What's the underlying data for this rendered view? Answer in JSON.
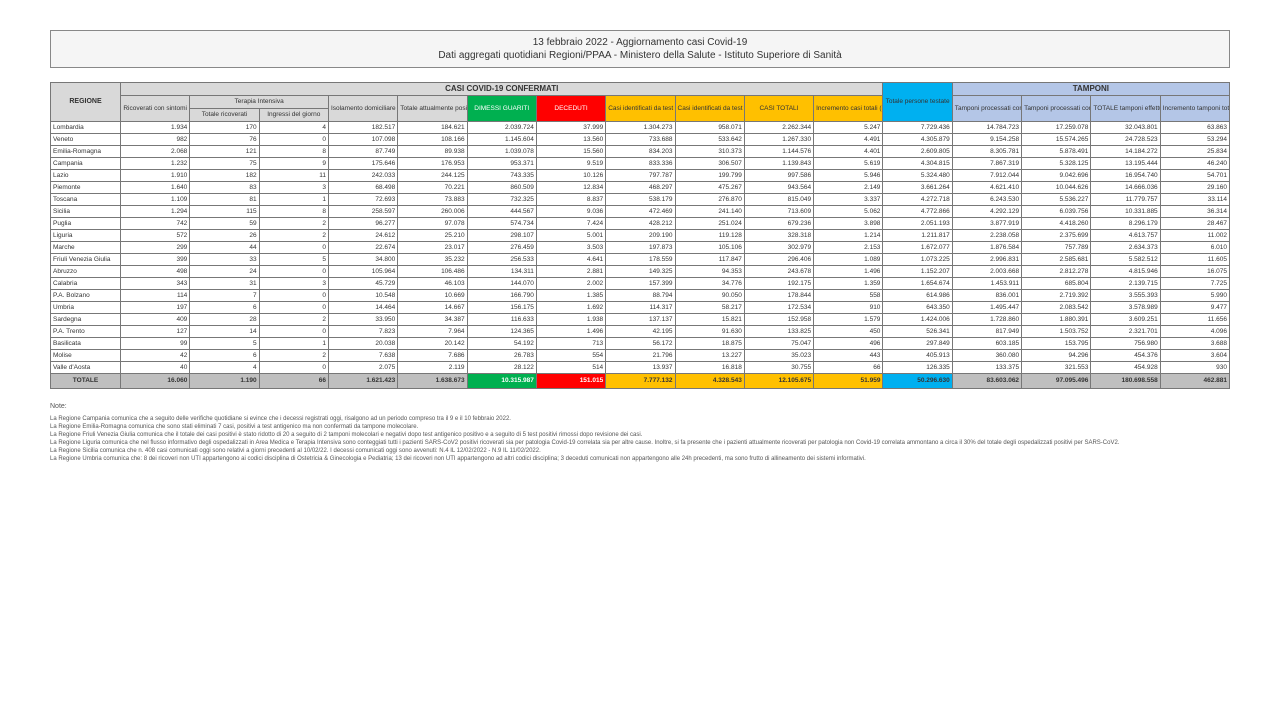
{
  "header": {
    "line1": "13 febbraio 2022 - Aggiornamento casi Covid-19",
    "line2": "Dati aggregati quotidiani Regioni/PPAA - Ministero della Salute - Istituto Superiore di Sanità"
  },
  "columns": {
    "regione": "REGIONE",
    "group_casi": "CASI COVID-19 CONFERMATI",
    "group_tamponi": "TAMPONI",
    "ricoverati": "Ricoverati con sintomi",
    "terapia_intensiva": "Terapia Intensiva",
    "ti_totale": "Totale ricoverati",
    "ti_ingressi": "Ingressi del giorno",
    "isolamento": "Isolamento domiciliare",
    "tot_positivi": "Totale attualmente positivi",
    "dimessi": "DIMESSI GUARITI",
    "deceduti": "DECEDUTI",
    "casi_mol": "Casi identificati da test molecolare",
    "casi_ag": "Casi identificati da test antigenico rapido",
    "casi_totali": "CASI TOTALI",
    "incr_casi": "Incremento casi totali (rispetto al giorno precedente)",
    "persone_test": "Totale persone testate",
    "tamp_mol": "Tamponi processati con test molecolare",
    "tamp_ag": "Tamponi processati con test antigenico rapido",
    "tamp_tot": "TOTALE tamponi effettuati",
    "incr_tamp": "Incremento tamponi totali (rispetto al giorno precedente)"
  },
  "rows": [
    {
      "r": "Lombardia",
      "v": [
        "1.934",
        "170",
        "4",
        "182.517",
        "184.621",
        "2.039.724",
        "37.999",
        "1.304.273",
        "958.071",
        "2.262.344",
        "5.247",
        "7.729.436",
        "14.784.723",
        "17.259.078",
        "32.043.801",
        "63.863"
      ]
    },
    {
      "r": "Veneto",
      "v": [
        "982",
        "76",
        "0",
        "107.098",
        "108.166",
        "1.145.604",
        "13.560",
        "733.688",
        "533.642",
        "1.267.330",
        "4.491",
        "4.305.879",
        "9.154.258",
        "15.574.265",
        "24.728.523",
        "53.294"
      ]
    },
    {
      "r": "Emilia-Romagna",
      "v": [
        "2.068",
        "121",
        "8",
        "87.749",
        "89.938",
        "1.039.078",
        "15.560",
        "834.203",
        "310.373",
        "1.144.576",
        "4.401",
        "2.609.805",
        "8.305.781",
        "5.878.491",
        "14.184.272",
        "25.834"
      ]
    },
    {
      "r": "Campania",
      "v": [
        "1.232",
        "75",
        "9",
        "175.646",
        "176.953",
        "953.371",
        "9.519",
        "833.336",
        "306.507",
        "1.139.843",
        "5.619",
        "4.304.815",
        "7.867.319",
        "5.328.125",
        "13.195.444",
        "46.240"
      ]
    },
    {
      "r": "Lazio",
      "v": [
        "1.910",
        "182",
        "11",
        "242.033",
        "244.125",
        "743.335",
        "10.126",
        "797.787",
        "199.799",
        "997.586",
        "5.946",
        "5.324.480",
        "7.912.044",
        "9.042.696",
        "16.954.740",
        "54.701"
      ]
    },
    {
      "r": "Piemonte",
      "v": [
        "1.640",
        "83",
        "3",
        "68.498",
        "70.221",
        "860.509",
        "12.834",
        "468.297",
        "475.267",
        "943.564",
        "2.149",
        "3.661.264",
        "4.621.410",
        "10.044.626",
        "14.666.036",
        "29.160"
      ]
    },
    {
      "r": "Toscana",
      "v": [
        "1.109",
        "81",
        "1",
        "72.693",
        "73.883",
        "732.325",
        "8.837",
        "538.179",
        "276.870",
        "815.049",
        "3.337",
        "4.272.718",
        "6.243.530",
        "5.536.227",
        "11.779.757",
        "33.114"
      ]
    },
    {
      "r": "Sicilia",
      "v": [
        "1.294",
        "115",
        "8",
        "258.597",
        "260.006",
        "444.567",
        "9.036",
        "472.469",
        "241.140",
        "713.609",
        "5.062",
        "4.772.866",
        "4.292.129",
        "6.039.756",
        "10.331.885",
        "36.314"
      ]
    },
    {
      "r": "Puglia",
      "v": [
        "742",
        "59",
        "2",
        "96.277",
        "97.078",
        "574.734",
        "7.424",
        "428.212",
        "251.024",
        "679.236",
        "3.898",
        "2.051.193",
        "3.877.919",
        "4.418.260",
        "8.296.179",
        "28.467"
      ]
    },
    {
      "r": "Liguria",
      "v": [
        "572",
        "26",
        "2",
        "24.612",
        "25.210",
        "298.107",
        "5.001",
        "209.190",
        "119.128",
        "328.318",
        "1.214",
        "1.211.817",
        "2.238.058",
        "2.375.699",
        "4.613.757",
        "11.002"
      ]
    },
    {
      "r": "Marche",
      "v": [
        "299",
        "44",
        "0",
        "22.674",
        "23.017",
        "276.459",
        "3.503",
        "197.873",
        "105.106",
        "302.979",
        "2.153",
        "1.672.077",
        "1.876.584",
        "757.789",
        "2.634.373",
        "6.010"
      ]
    },
    {
      "r": "Friuli Venezia Giulia",
      "v": [
        "399",
        "33",
        "5",
        "34.800",
        "35.232",
        "256.533",
        "4.641",
        "178.559",
        "117.847",
        "296.406",
        "1.089",
        "1.073.225",
        "2.996.831",
        "2.585.681",
        "5.582.512",
        "11.605"
      ]
    },
    {
      "r": "Abruzzo",
      "v": [
        "498",
        "24",
        "0",
        "105.964",
        "106.486",
        "134.311",
        "2.881",
        "149.325",
        "94.353",
        "243.678",
        "1.496",
        "1.152.207",
        "2.003.668",
        "2.812.278",
        "4.815.946",
        "16.075"
      ]
    },
    {
      "r": "Calabria",
      "v": [
        "343",
        "31",
        "3",
        "45.729",
        "46.103",
        "144.070",
        "2.002",
        "157.399",
        "34.776",
        "192.175",
        "1.359",
        "1.654.674",
        "1.453.911",
        "685.804",
        "2.139.715",
        "7.725"
      ]
    },
    {
      "r": "P.A. Bolzano",
      "v": [
        "114",
        "7",
        "0",
        "10.548",
        "10.669",
        "166.790",
        "1.385",
        "88.794",
        "90.050",
        "178.844",
        "558",
        "614.986",
        "836.001",
        "2.719.392",
        "3.555.393",
        "5.990"
      ]
    },
    {
      "r": "Umbria",
      "v": [
        "197",
        "6",
        "0",
        "14.464",
        "14.667",
        "156.175",
        "1.692",
        "114.317",
        "58.217",
        "172.534",
        "910",
        "643.350",
        "1.495.447",
        "2.083.542",
        "3.578.989",
        "9.477"
      ]
    },
    {
      "r": "Sardegna",
      "v": [
        "409",
        "28",
        "2",
        "33.950",
        "34.387",
        "116.633",
        "1.938",
        "137.137",
        "15.821",
        "152.958",
        "1.579",
        "1.424.006",
        "1.728.860",
        "1.880.391",
        "3.609.251",
        "11.656"
      ]
    },
    {
      "r": "P.A. Trento",
      "v": [
        "127",
        "14",
        "0",
        "7.823",
        "7.964",
        "124.365",
        "1.496",
        "42.195",
        "91.630",
        "133.825",
        "450",
        "526.341",
        "817.949",
        "1.503.752",
        "2.321.701",
        "4.096"
      ]
    },
    {
      "r": "Basilicata",
      "v": [
        "99",
        "5",
        "1",
        "20.038",
        "20.142",
        "54.192",
        "713",
        "56.172",
        "18.875",
        "75.047",
        "496",
        "297.849",
        "603.185",
        "153.795",
        "756.980",
        "3.688"
      ]
    },
    {
      "r": "Molise",
      "v": [
        "42",
        "6",
        "2",
        "7.638",
        "7.686",
        "26.783",
        "554",
        "21.796",
        "13.227",
        "35.023",
        "443",
        "405.913",
        "360.080",
        "94.296",
        "454.376",
        "3.604"
      ]
    },
    {
      "r": "Valle d'Aosta",
      "v": [
        "40",
        "4",
        "0",
        "2.075",
        "2.119",
        "28.122",
        "514",
        "13.937",
        "16.818",
        "30.755",
        "66",
        "126.335",
        "133.375",
        "321.553",
        "454.928",
        "930"
      ]
    }
  ],
  "totals": {
    "label": "TOTALE",
    "v": [
      "16.060",
      "1.190",
      "66",
      "1.621.423",
      "1.638.673",
      "10.315.987",
      "151.015",
      "7.777.132",
      "4.328.543",
      "12.105.675",
      "51.959",
      "50.296.630",
      "83.603.062",
      "97.095.496",
      "180.698.558",
      "462.881"
    ]
  },
  "notes": {
    "title": "Note:",
    "lines": [
      "La Regione Campania comunica che a seguito delle verifiche quotidiane si evince che i decessi registrati oggi, risalgono ad un periodo compreso tra il 9 e il 10 febbraio 2022.",
      "La Regione Emilia-Romagna comunica che sono stati eliminati 7 casi, positivi a test antigenico ma non confermati da tampone molecolare.",
      "La Regione Friuli Venezia Giulia comunica che il totale dei casi positivi è stato ridotto di 20 a seguito di 2 tamponi molecolari e negativi dopo test antigenico positivo e a seguito di 5 test positivi rimossi dopo revisione dei casi.",
      "La Regione Liguria comunica che nel flusso informativo degli ospedalizzati in Area Medica e Terapia Intensiva sono conteggiati tutti i pazienti SARS-CoV2 positivi ricoverati sia per patologia Covid-19 correlata sia per altre cause. Inoltre, si fa presente che i pazienti attualmente ricoverati per patologia non Covid-19 correlata ammontano a circa il 30% del totale degli ospedalizzati positivi per SARS-CoV2.",
      "La Regione Sicilia comunica che n. 408 casi comunicati oggi sono relativi a giorni precedenti al 10/02/22. I decessi comunicati oggi sono avvenuti: N.4 IL 12/02/2022 - N.9 IL 11/02/2022.",
      "La Regione Umbria comunica che: 8 dei ricoveri non UTI appartengono ai codici disciplina di Ostetricia & Ginecologia e Pediatria; 13 dei ricoveri non UTI appartengono ad altri codici disciplina; 3 deceduti comunicati non appartengono alle 24h precedenti, ma sono frutto di allineamento dei sistemi informativi."
    ]
  }
}
